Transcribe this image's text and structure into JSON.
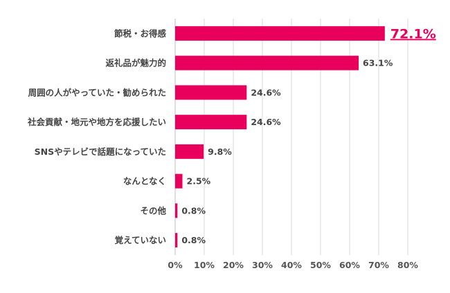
{
  "chart_data": {
    "type": "bar",
    "orientation": "horizontal",
    "categories": [
      "節税・お得感",
      "返礼品が魅力的",
      "周囲の人がやっていた・勧められた",
      "社会貢献・地元や地方を応援したい",
      "SNSやテレビで話題になっていた",
      "なんとなく",
      "その他",
      "覚えていない"
    ],
    "values": [
      72.1,
      63.1,
      24.6,
      24.6,
      9.8,
      2.5,
      0.8,
      0.8
    ],
    "value_labels": [
      "72.1%",
      "63.1%",
      "24.6%",
      "24.6%",
      "9.8%",
      "2.5%",
      "0.8%",
      "0.8%"
    ],
    "highlight_index": 0,
    "xlim": [
      0,
      80
    ],
    "xticks": [
      0,
      10,
      20,
      30,
      40,
      50,
      60,
      70,
      80
    ],
    "xtick_labels": [
      "0%",
      "10%",
      "20%",
      "30%",
      "40%",
      "50%",
      "60%",
      "70%",
      "80%"
    ],
    "grid": true,
    "legend": "none",
    "bar_color": "#E8005C",
    "highlight_label_color": "#E8005C"
  }
}
